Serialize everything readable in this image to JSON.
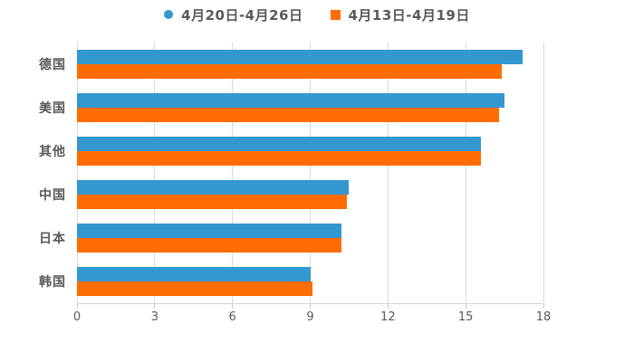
{
  "colors": {
    "background": "#ffffff",
    "series_blue": "#3398d0",
    "series_orange": "#ff6c00",
    "text_gray": "#595959",
    "gridline": "#d9d9d9"
  },
  "chart_data": {
    "type": "bar",
    "orientation": "horizontal",
    "title": "",
    "xlabel": "",
    "ylabel": "",
    "categories": [
      "德国",
      "美国",
      "其他",
      "中国",
      "日本",
      "韩国"
    ],
    "series": [
      {
        "name": "4月20日-4月26日",
        "color": "#3398d0",
        "marker": "circle",
        "values": [
          17.2,
          16.5,
          15.6,
          10.5,
          10.2,
          9.0
        ]
      },
      {
        "name": "4月13日-4月19日",
        "color": "#ff6c00",
        "marker": "square",
        "values": [
          16.4,
          16.3,
          15.6,
          10.4,
          10.2,
          9.1
        ]
      }
    ],
    "xticks": [
      0,
      3,
      6,
      9,
      12,
      15,
      18
    ],
    "xlim": [
      0,
      18
    ],
    "grid": true,
    "legend_position": "top-center"
  }
}
